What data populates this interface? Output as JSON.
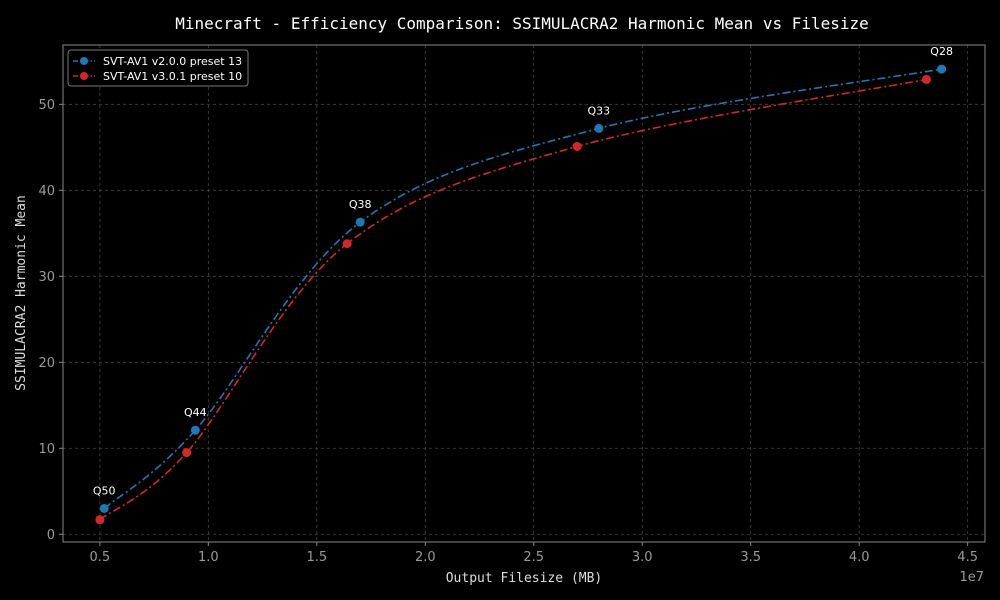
{
  "chart_data": {
    "type": "line",
    "title": "Minecraft - Efficiency Comparison: SSIMULACRA2 Harmonic Mean vs Filesize",
    "xlabel": "Output Filesize (MB)",
    "ylabel": "SSIMULACRA2 Harmonic Mean",
    "x_offset_label": "1e7",
    "xlim": [
      3300000,
      45800000
    ],
    "ylim": [
      -0.9,
      56.9
    ],
    "x_ticks": [
      5000000,
      10000000,
      15000000,
      20000000,
      25000000,
      30000000,
      35000000,
      40000000,
      45000000
    ],
    "x_tick_labels": [
      "0.5",
      "1.0",
      "1.5",
      "2.0",
      "2.5",
      "3.0",
      "3.5",
      "4.0",
      "4.5"
    ],
    "y_ticks": [
      0,
      10,
      20,
      30,
      40,
      50
    ],
    "y_tick_labels": [
      "0",
      "10",
      "20",
      "30",
      "40",
      "50"
    ],
    "grid": true,
    "legend_position": "top-left",
    "series": [
      {
        "name": "SVT-AV1 v2.0.0 preset 13",
        "color": "#1f77b4",
        "x": [
          5200000,
          9400000,
          17000000,
          28000000,
          43800000
        ],
        "y": [
          3.0,
          12.1,
          36.3,
          47.2,
          54.1
        ]
      },
      {
        "name": "SVT-AV1 v3.0.1 preset 10",
        "color": "#d62728",
        "x": [
          5000000,
          9000000,
          16400000,
          27000000,
          43100000
        ],
        "y": [
          1.7,
          9.5,
          33.8,
          45.1,
          52.9
        ]
      }
    ],
    "annotations": [
      {
        "text": "Q50",
        "x": 5200000,
        "y": 3.0
      },
      {
        "text": "Q44",
        "x": 9400000,
        "y": 12.1
      },
      {
        "text": "Q38",
        "x": 17000000,
        "y": 36.3
      },
      {
        "text": "Q33",
        "x": 28000000,
        "y": 47.2
      },
      {
        "text": "Q28",
        "x": 43800000,
        "y": 54.1
      }
    ]
  }
}
